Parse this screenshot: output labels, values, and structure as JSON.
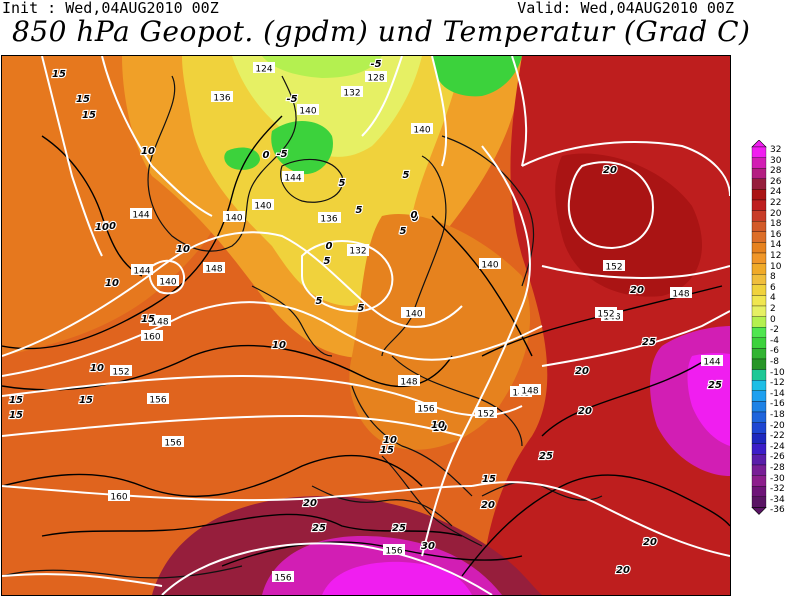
{
  "header": {
    "init": "Init : Wed,04AUG2010 00Z",
    "valid": "Valid: Wed,04AUG2010 00Z",
    "title": "850 hPa Geopot. (gpdm) und Temperatur (Grad C)"
  },
  "map": {
    "geopotential_labels": [
      {
        "text": "124"
      },
      {
        "text": "128"
      },
      {
        "text": "132"
      },
      {
        "text": "136"
      },
      {
        "text": "140"
      },
      {
        "text": "140"
      },
      {
        "text": "140"
      },
      {
        "text": "144"
      },
      {
        "text": "144"
      },
      {
        "text": "140"
      },
      {
        "text": "136"
      },
      {
        "text": "132"
      },
      {
        "text": "140"
      },
      {
        "text": "140"
      },
      {
        "text": "144"
      },
      {
        "text": "148"
      },
      {
        "text": "148"
      },
      {
        "text": "152"
      },
      {
        "text": "156"
      },
      {
        "text": "160"
      },
      {
        "text": "152"
      },
      {
        "text": "148"
      },
      {
        "text": "148"
      },
      {
        "text": "148"
      },
      {
        "text": "148"
      },
      {
        "text": "156"
      },
      {
        "text": "152"
      },
      {
        "text": "160"
      },
      {
        "text": "156"
      },
      {
        "text": "156"
      },
      {
        "text": "156"
      },
      {
        "text": "148"
      },
      {
        "text": "152"
      },
      {
        "text": "148"
      },
      {
        "text": "144"
      },
      {
        "text": "140"
      },
      {
        "text": "136"
      },
      {
        "text": "132"
      }
    ],
    "temperature_labels": [
      {
        "text": "15"
      },
      {
        "text": "15"
      },
      {
        "text": "15"
      },
      {
        "text": "10"
      },
      {
        "text": "10"
      },
      {
        "text": "10"
      },
      {
        "text": "10"
      },
      {
        "text": "10"
      },
      {
        "text": "15"
      },
      {
        "text": "10"
      },
      {
        "text": "15"
      },
      {
        "text": "15"
      },
      {
        "text": "15"
      },
      {
        "text": "15"
      },
      {
        "text": "20"
      },
      {
        "text": "20"
      },
      {
        "text": "25"
      },
      {
        "text": "25"
      },
      {
        "text": "30"
      },
      {
        "text": "25"
      },
      {
        "text": "20"
      },
      {
        "text": "20"
      },
      {
        "text": "25"
      },
      {
        "text": "20"
      },
      {
        "text": "20"
      },
      {
        "text": "20"
      },
      {
        "text": "20"
      },
      {
        "text": "25"
      },
      {
        "text": "15"
      },
      {
        "text": "10"
      },
      {
        "text": "10"
      },
      {
        "text": "5"
      },
      {
        "text": "5"
      },
      {
        "text": "5"
      },
      {
        "text": "5"
      },
      {
        "text": "0"
      },
      {
        "text": "0"
      },
      {
        "text": "0"
      },
      {
        "text": "-5"
      },
      {
        "text": "-5"
      },
      {
        "text": "-5"
      },
      {
        "text": "5"
      },
      {
        "text": "10"
      },
      {
        "text": "10"
      },
      {
        "text": "5"
      },
      {
        "text": "5"
      },
      {
        "text": "0"
      }
    ]
  },
  "legend": {
    "labels": [
      "32",
      "30",
      "28",
      "26",
      "24",
      "22",
      "20",
      "18",
      "16",
      "14",
      "12",
      "10",
      "8",
      "6",
      "4",
      "2",
      "0",
      "-2",
      "-4",
      "-6",
      "-8",
      "-10",
      "-12",
      "-14",
      "-16",
      "-18",
      "-20",
      "-22",
      "-24",
      "-26",
      "-28",
      "-30",
      "-32",
      "-34",
      "-36"
    ],
    "colors": [
      "#f01ef0",
      "#d21eb4",
      "#b41e82",
      "#961e3c",
      "#aa1414",
      "#be1e1e",
      "#c83c28",
      "#d25a28",
      "#dc6e28",
      "#e6821e",
      "#f09628",
      "#f0aa28",
      "#f0be3c",
      "#f0d23c",
      "#f0e650",
      "#e6f064",
      "#b4f050",
      "#50e650",
      "#3cd23c",
      "#32b432",
      "#289628",
      "#1ec896",
      "#1ebee6",
      "#1ea0f0",
      "#1e82e6",
      "#1e64dc",
      "#1e46d2",
      "#1e28be",
      "#3c1ec8",
      "#5a1eaa",
      "#781e96",
      "#8c1e8c",
      "#6e1478",
      "#5a1464"
    ]
  }
}
